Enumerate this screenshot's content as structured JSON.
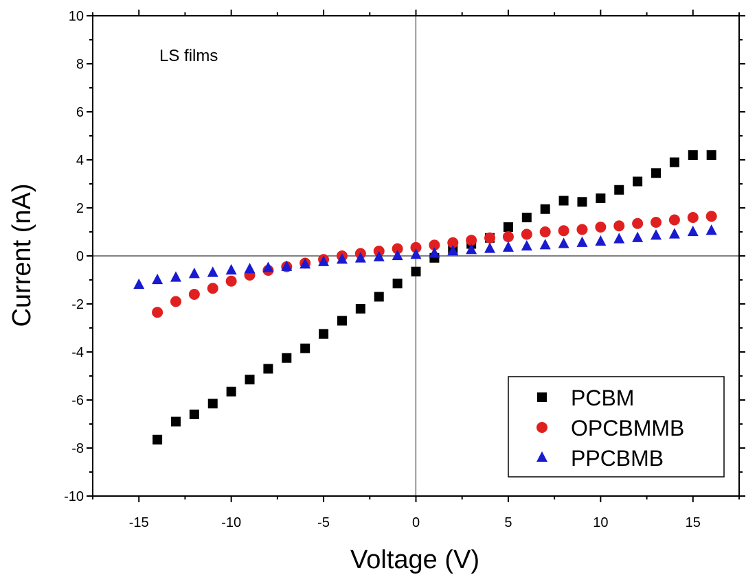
{
  "chart_data": {
    "type": "scatter",
    "title": "",
    "xlabel": "Voltage (V)",
    "ylabel": "Current (nA)",
    "xlim": [
      -17.5,
      17.5
    ],
    "ylim": [
      -10,
      10
    ],
    "xticks": [
      -15,
      -10,
      -5,
      0,
      5,
      10,
      15
    ],
    "yticks": [
      -10,
      -8,
      -6,
      -4,
      -2,
      0,
      2,
      4,
      6,
      8,
      10
    ],
    "grid": false,
    "zero_lines": true,
    "annotation": "LS films",
    "legend_position": "bottom-right",
    "series": [
      {
        "name": "PCBM",
        "marker": "square",
        "color": "#000000",
        "x": [
          -14,
          -13,
          -12,
          -11,
          -10,
          -9,
          -8,
          -7,
          -6,
          -5,
          -4,
          -3,
          -2,
          -1,
          0,
          1,
          2,
          3,
          4,
          5,
          6,
          7,
          8,
          9,
          10,
          11,
          12,
          13,
          14,
          15,
          16
        ],
        "y": [
          -7.65,
          -6.9,
          -6.6,
          -6.15,
          -5.65,
          -5.15,
          -4.7,
          -4.25,
          -3.85,
          -3.25,
          -2.7,
          -2.2,
          -1.7,
          -1.15,
          -0.65,
          -0.08,
          0.3,
          0.5,
          0.75,
          1.2,
          1.6,
          1.95,
          2.3,
          2.25,
          2.4,
          2.75,
          3.1,
          3.45,
          3.9,
          4.2,
          4.2
        ]
      },
      {
        "name": "OPCBMMB",
        "marker": "circle",
        "color": "#e02020",
        "x": [
          -14,
          -13,
          -12,
          -11,
          -10,
          -9,
          -8,
          -7,
          -6,
          -5,
          -4,
          -3,
          -2,
          -1,
          0,
          1,
          2,
          3,
          4,
          5,
          6,
          7,
          8,
          9,
          10,
          11,
          12,
          13,
          14,
          15,
          16
        ],
        "y": [
          -2.35,
          -1.9,
          -1.6,
          -1.35,
          -1.05,
          -0.8,
          -0.6,
          -0.45,
          -0.3,
          -0.15,
          0.0,
          0.1,
          0.2,
          0.3,
          0.35,
          0.45,
          0.55,
          0.65,
          0.75,
          0.8,
          0.9,
          1.0,
          1.05,
          1.1,
          1.2,
          1.25,
          1.35,
          1.4,
          1.5,
          1.6,
          1.65
        ]
      },
      {
        "name": "PPCBMB",
        "marker": "triangle",
        "color": "#1a1ad0",
        "x": [
          -15,
          -14,
          -13,
          -12,
          -11,
          -10,
          -9,
          -8,
          -7,
          -6,
          -5,
          -4,
          -3,
          -2,
          -1,
          0,
          1,
          2,
          3,
          4,
          5,
          6,
          7,
          8,
          9,
          10,
          11,
          12,
          13,
          14,
          15,
          16
        ],
        "y": [
          -1.2,
          -1.0,
          -0.9,
          -0.75,
          -0.7,
          -0.6,
          -0.55,
          -0.5,
          -0.45,
          -0.35,
          -0.25,
          -0.15,
          -0.1,
          -0.05,
          0.0,
          0.05,
          0.1,
          0.2,
          0.25,
          0.3,
          0.35,
          0.4,
          0.45,
          0.5,
          0.55,
          0.6,
          0.7,
          0.75,
          0.85,
          0.9,
          1.0,
          1.05
        ]
      }
    ]
  }
}
